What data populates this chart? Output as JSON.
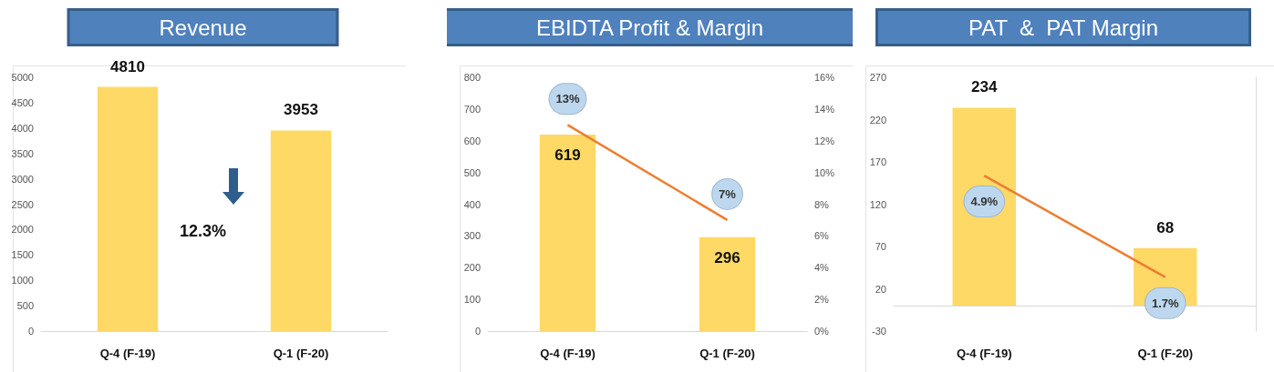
{
  "chart_data": [
    {
      "type": "bar",
      "title": "Revenue",
      "categories": [
        "Q-4 (F-19)",
        "Q-1 (F-20)"
      ],
      "series": [
        {
          "color": "#ffd966",
          "values": [
            4810,
            3953
          ]
        }
      ],
      "ylim": [
        0,
        5000
      ],
      "yticks": [
        0,
        500,
        1000,
        1500,
        2000,
        2500,
        3000,
        3500,
        4000,
        4500,
        5000
      ],
      "data_labels": true,
      "annotations": [
        "12.3%"
      ]
    },
    {
      "type": "bar",
      "title": "EBIDTA Profit & Margin",
      "categories": [
        "Q-4 (F-19)",
        "Q-1 (F-20)"
      ],
      "series": [
        {
          "color": "#ffd966",
          "values": [
            619,
            296
          ]
        },
        {
          "type": "line",
          "axis": "y2",
          "color": "#ed7d31",
          "values": [
            13,
            7
          ],
          "value_labels": [
            "13%",
            "7%"
          ]
        }
      ],
      "ylim": [
        0,
        800
      ],
      "yticks": [
        0,
        100,
        200,
        300,
        400,
        500,
        600,
        700,
        800
      ],
      "y2lim": [
        0,
        16
      ],
      "y2ticks": [
        {
          "value": 0,
          "label": "0%"
        },
        {
          "value": 2,
          "label": "2%"
        },
        {
          "value": 4,
          "label": "4%"
        },
        {
          "value": 6,
          "label": "6%"
        },
        {
          "value": 8,
          "label": "8%"
        },
        {
          "value": 10,
          "label": "10%"
        },
        {
          "value": 12,
          "label": "12%"
        },
        {
          "value": 14,
          "label": "14%"
        },
        {
          "value": 16,
          "label": "16%"
        }
      ],
      "data_labels": true
    },
    {
      "type": "bar",
      "title": "PAT  &  PAT Margin",
      "categories": [
        "Q-4 (F-19)",
        "Q-1 (F-20)"
      ],
      "series": [
        {
          "color": "#ffd966",
          "values": [
            234,
            68
          ]
        },
        {
          "type": "line",
          "axis": "y2",
          "color": "#ed7d31",
          "values": [
            4.9,
            1.7
          ],
          "value_labels": [
            "4.9%",
            "1.7%"
          ]
        }
      ],
      "ylim": [
        -30,
        270
      ],
      "yticks": [
        -30,
        20,
        70,
        120,
        170,
        220,
        270
      ],
      "y2lim": [
        0,
        8
      ],
      "data_labels": true
    }
  ]
}
